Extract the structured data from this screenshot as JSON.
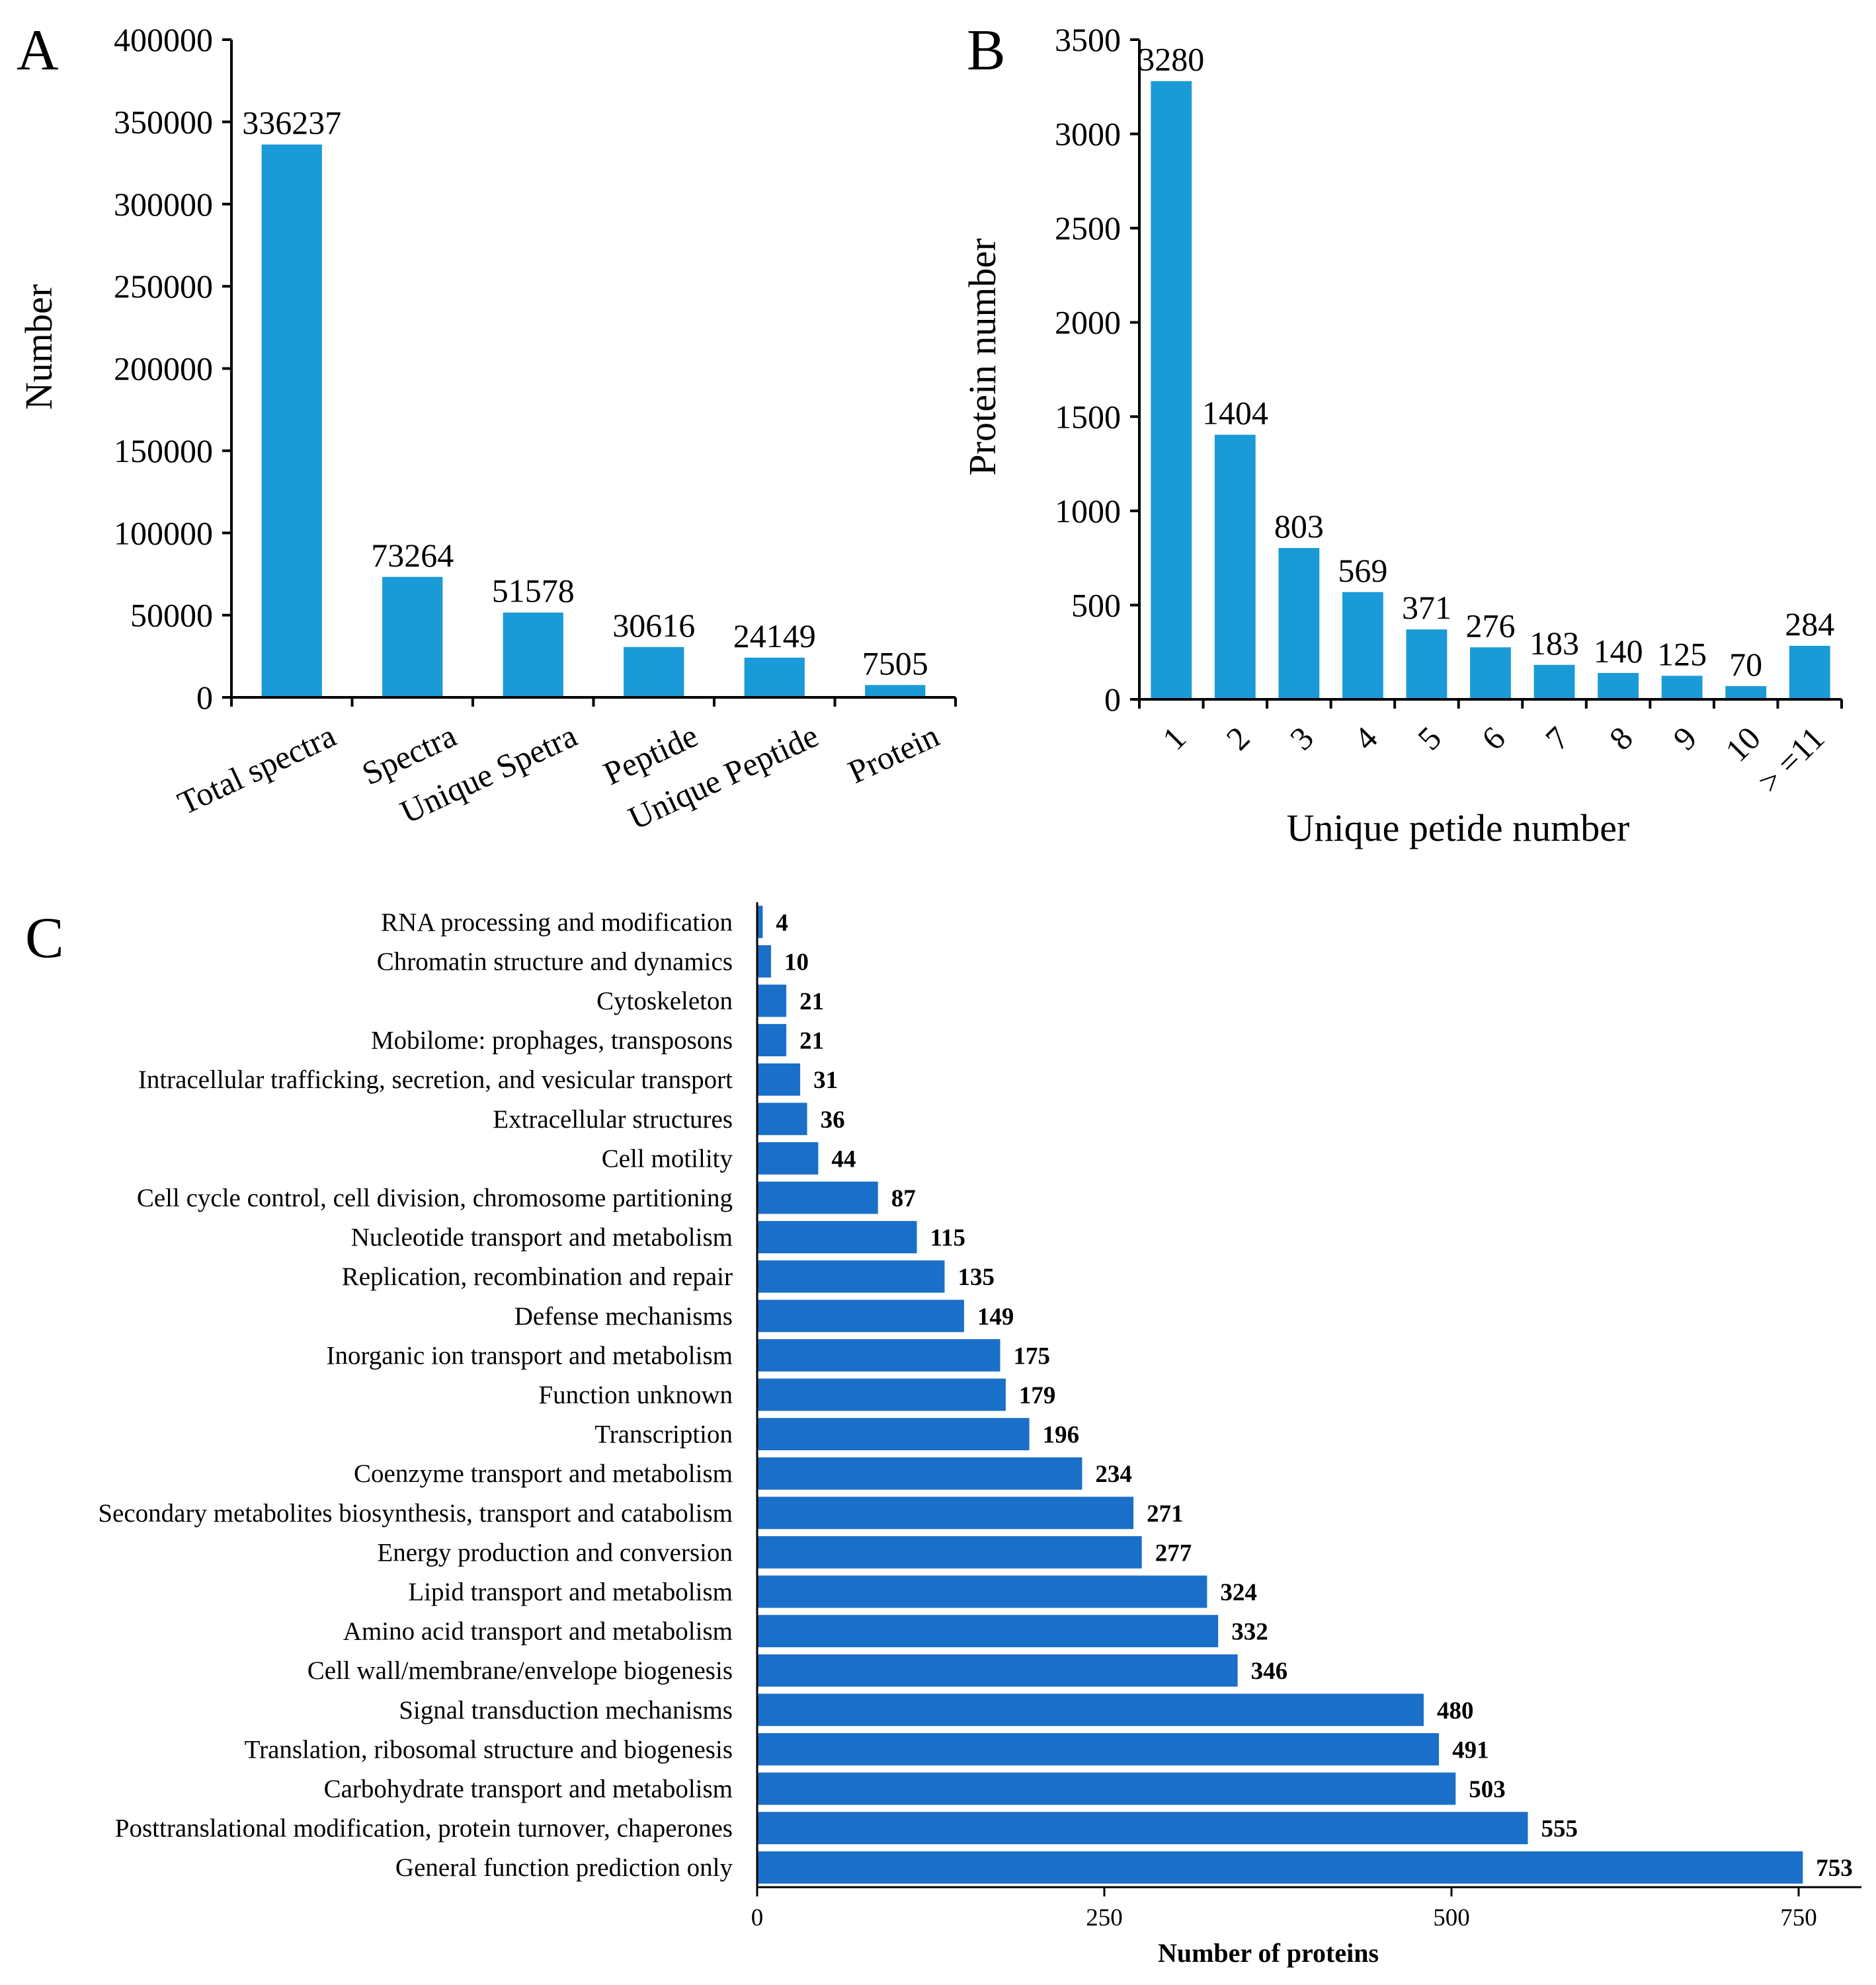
{
  "colors": {
    "panel_ab_bar": "#1b9ad8",
    "panel_c_bar": "#1a6fc9",
    "axis": "#000000"
  },
  "chart_data": [
    {
      "panel": "A",
      "type": "bar",
      "title": "",
      "xlabel": "",
      "ylabel": "Number",
      "categories": [
        "Total spectra",
        "Spectra",
        "Unique Spetra",
        "Peptide",
        "Unique Peptide",
        "Protein"
      ],
      "values": [
        336237,
        73264,
        51578,
        30616,
        24149,
        7505
      ],
      "ylim": [
        0,
        400000
      ],
      "yticks": [
        0,
        50000,
        100000,
        150000,
        200000,
        250000,
        300000,
        350000,
        400000
      ],
      "grid": false,
      "data_labels": true
    },
    {
      "panel": "B",
      "type": "bar",
      "title": "",
      "xlabel": "Unique petide number",
      "ylabel": "Protein number",
      "categories": [
        "1",
        "2",
        "3",
        "4",
        "5",
        "6",
        "7",
        "8",
        "9",
        "10",
        "> =11"
      ],
      "values": [
        3280,
        1404,
        803,
        569,
        371,
        276,
        183,
        140,
        125,
        70,
        284
      ],
      "ylim": [
        0,
        3500
      ],
      "yticks": [
        0,
        500,
        1000,
        1500,
        2000,
        2500,
        3000,
        3500
      ],
      "grid": false,
      "data_labels": true
    },
    {
      "panel": "C",
      "type": "bar",
      "orientation": "horizontal",
      "title": "",
      "xlabel": "Number of proteins",
      "ylabel": "",
      "categories": [
        "RNA processing and modification",
        "Chromatin structure and dynamics",
        "Cytoskeleton",
        "Mobilome: prophages, transposons",
        "Intracellular trafficking, secretion, and vesicular transport",
        "Extracellular structures",
        "Cell motility",
        "Cell cycle control, cell division, chromosome partitioning",
        "Nucleotide transport and metabolism",
        "Replication, recombination and repair",
        "Defense mechanisms",
        "Inorganic ion transport and metabolism",
        "Function unknown",
        "Transcription",
        "Coenzyme transport and metabolism",
        "Secondary metabolites biosynthesis, transport and catabolism",
        "Energy production and conversion",
        "Lipid transport and metabolism",
        "Amino acid transport and metabolism",
        "Cell wall/membrane/envelope biogenesis",
        "Signal transduction mechanisms",
        "Translation, ribosomal structure and biogenesis",
        "Carbohydrate transport and metabolism",
        "Posttranslational modification, protein turnover, chaperones",
        "General function prediction only"
      ],
      "values": [
        4,
        10,
        21,
        21,
        31,
        36,
        44,
        87,
        115,
        135,
        149,
        175,
        179,
        196,
        234,
        271,
        277,
        324,
        332,
        346,
        480,
        491,
        503,
        555,
        753
      ],
      "xlim": [
        0,
        800
      ],
      "xticks": [
        0,
        250,
        500,
        750
      ],
      "grid": false,
      "data_labels": true
    }
  ]
}
